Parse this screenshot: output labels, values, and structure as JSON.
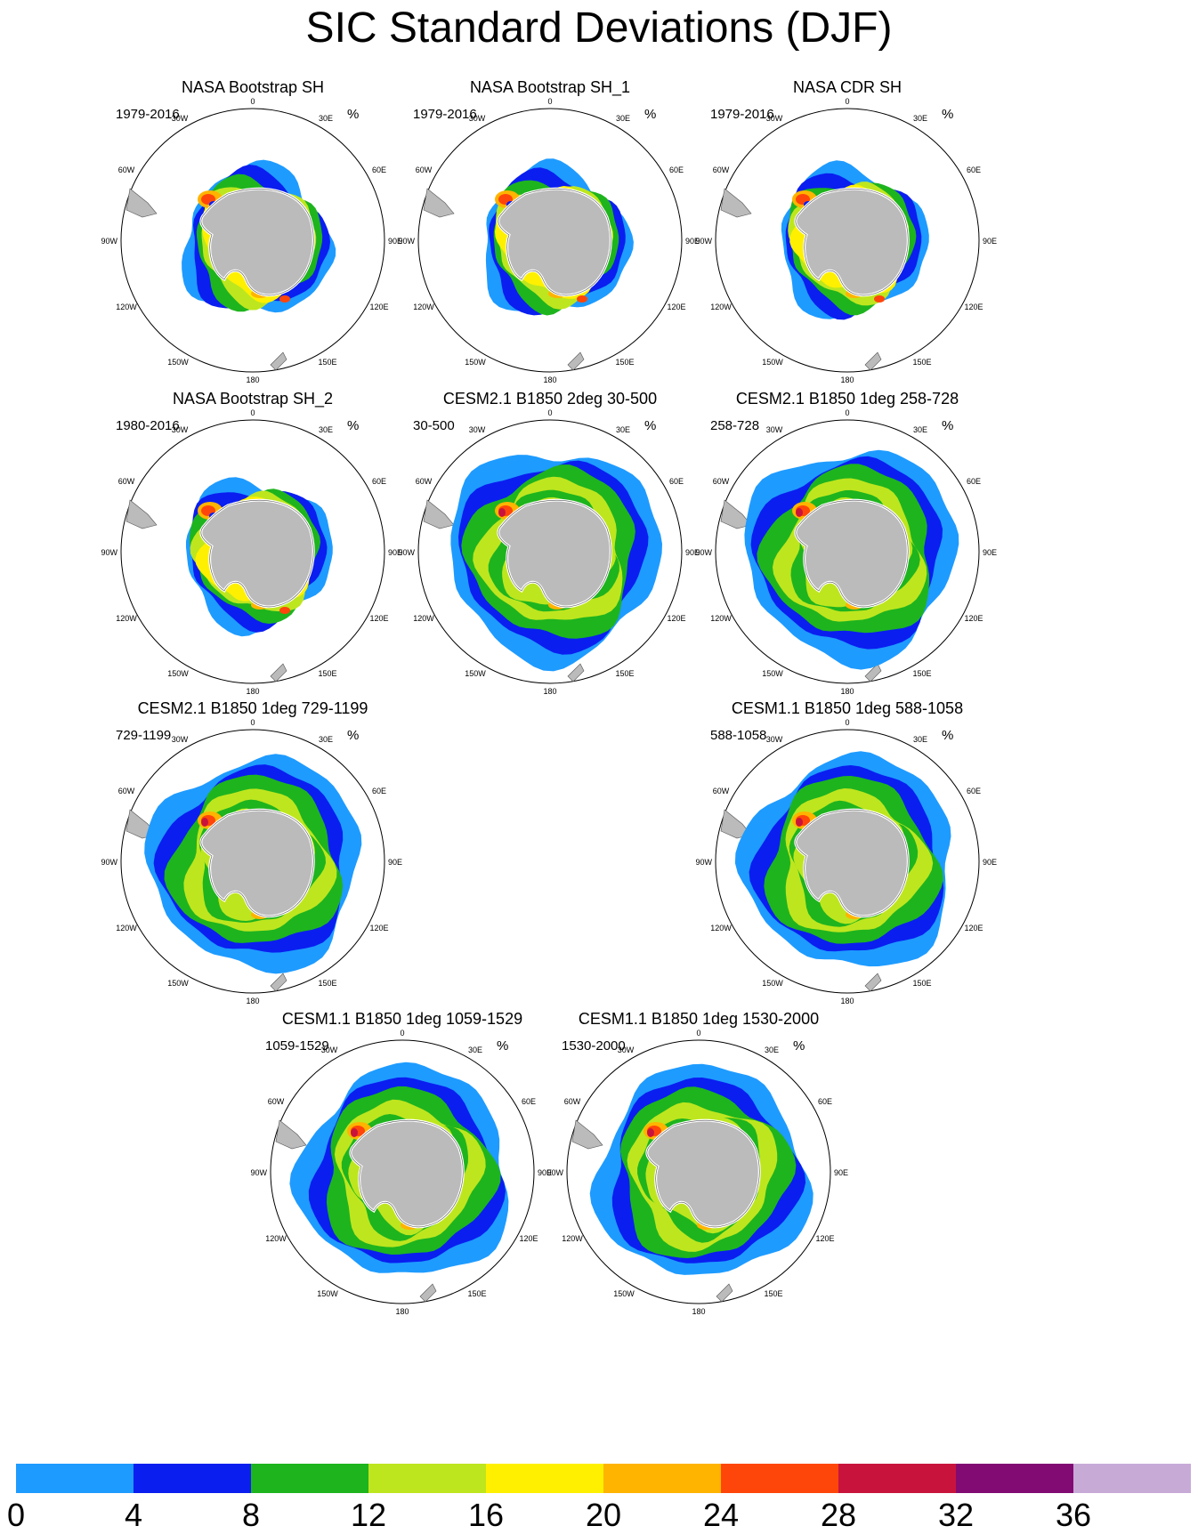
{
  "title": "SIC Standard Deviations (DJF)",
  "unit": "%",
  "graticule": {
    "top": "0",
    "bottom": "180",
    "left": "90W",
    "right": "90E",
    "nw1": "30W",
    "nw2": "60W",
    "ne1": "30E",
    "ne2": "60E",
    "sw1": "120W",
    "sw2": "150W",
    "se1": "120E",
    "se2": "150E"
  },
  "panels": [
    {
      "title": "NASA Bootstrap SH",
      "range": "1979-2016",
      "style": "obs"
    },
    {
      "title": "NASA Bootstrap SH_1",
      "range": "1979-2016",
      "style": "obs"
    },
    {
      "title": "NASA CDR SH",
      "range": "1979-2016",
      "style": "obs"
    },
    {
      "title": "NASA Bootstrap SH_2",
      "range": "1980-2016",
      "style": "obs"
    },
    {
      "title": "CESM2.1 B1850 2deg 30-500",
      "range": "30-500",
      "style": "model"
    },
    {
      "title": "CESM2.1 B1850 1deg 258-728",
      "range": "258-728",
      "style": "model"
    },
    {
      "title": "CESM2.1 B1850 1deg 729-1199",
      "range": "729-1199",
      "style": "model"
    },
    {
      "title": "CESM1.1 B1850 1deg 588-1058",
      "range": "588-1058",
      "style": "model"
    },
    {
      "title": "CESM1.1 B1850 1deg 1059-1529",
      "range": "1059-1529",
      "style": "model"
    },
    {
      "title": "CESM1.1 B1850 1deg 1530-2000",
      "range": "1530-2000",
      "style": "model"
    }
  ],
  "colorbar": {
    "colors": [
      "#1e9bff",
      "#0a1ef0",
      "#1eb41e",
      "#bee61e",
      "#fff000",
      "#ffb400",
      "#ff460a",
      "#c8143c",
      "#820a73",
      "#c8aad7"
    ],
    "labels": [
      "0",
      "4",
      "8",
      "12",
      "16",
      "20",
      "24",
      "28",
      "32",
      "36"
    ]
  }
}
